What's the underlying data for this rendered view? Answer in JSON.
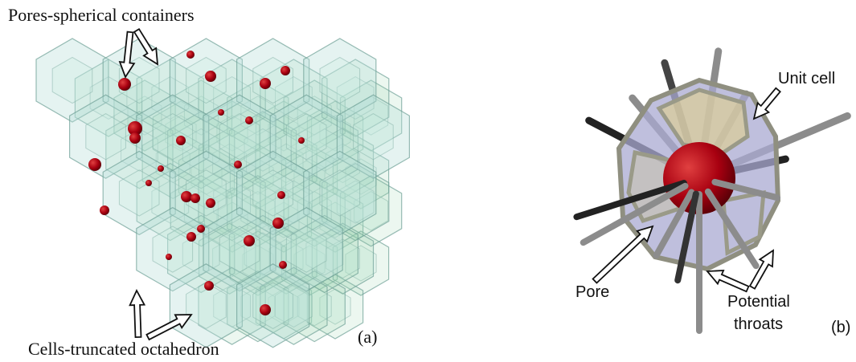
{
  "panel_a": {
    "top_label": "Pores-spherical containers",
    "bottom_label": "Cells-truncated octahedron",
    "panel_label": "(a)"
  },
  "panel_b": {
    "unit_cell_label": "Unit cell",
    "pore_label": "Pore",
    "throats_label": [
      "Potential",
      "throats"
    ],
    "panel_label": "(b)"
  }
}
